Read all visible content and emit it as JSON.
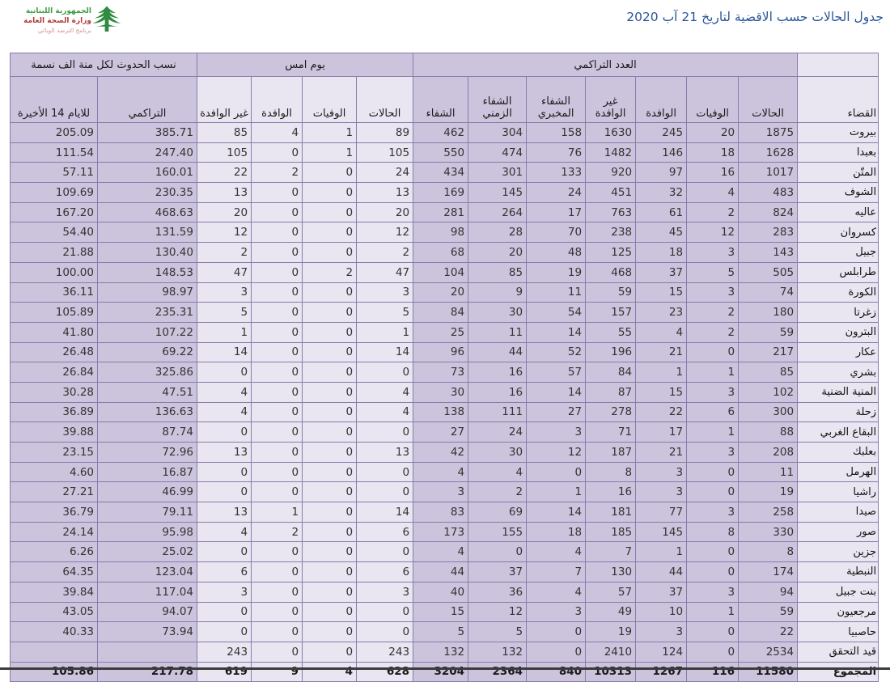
{
  "page": {
    "title": "جدول الحالات حسب الاقضية لتاريخ 21 آب 2020"
  },
  "logo": {
    "line1": "الجمهورية اللبنانية",
    "line2": "وزارة الصحة العامة",
    "line3": "برنامج الترصد الوبائي",
    "cedar_color": "#2e8b3f",
    "line1_color": "#3f9d45",
    "line2_color": "#b23a3a",
    "line3_color": "#d49090"
  },
  "table": {
    "corner_label": "القضاء",
    "groups": [
      {
        "label": "العدد التراكمي",
        "columns": [
          "الحالات",
          "الوفيات",
          "الوافدة",
          "غير الوافدة",
          "الشفاء المخبري",
          "الشفاء الزمني",
          "الشفاء"
        ]
      },
      {
        "label": "يوم امس",
        "columns": [
          "الحالات",
          "الوفيات",
          "الوافدة",
          "غير الوافدة"
        ]
      },
      {
        "label": "نسب الحدوث لكل منة الف نسمة",
        "columns": [
          "التراكمي",
          "للايام 14 الأخيرة"
        ]
      }
    ],
    "colors": {
      "lavender": "#ccc3dc",
      "light": "#e9e5f1",
      "border": "#8b7bab",
      "title_blue": "#2a5699"
    },
    "rows": [
      {
        "district": "بيروت",
        "values": [
          "1875",
          "20",
          "245",
          "1630",
          "158",
          "304",
          "462",
          "89",
          "1",
          "4",
          "85",
          "385.71",
          "205.09"
        ]
      },
      {
        "district": "بعبدا",
        "values": [
          "1628",
          "18",
          "146",
          "1482",
          "76",
          "474",
          "550",
          "105",
          "1",
          "0",
          "105",
          "247.40",
          "111.54"
        ]
      },
      {
        "district": "المتّن",
        "values": [
          "1017",
          "16",
          "97",
          "920",
          "133",
          "301",
          "434",
          "24",
          "0",
          "2",
          "22",
          "160.01",
          "57.11"
        ]
      },
      {
        "district": "الشوف",
        "values": [
          "483",
          "4",
          "32",
          "451",
          "24",
          "145",
          "169",
          "13",
          "0",
          "0",
          "13",
          "230.35",
          "109.69"
        ]
      },
      {
        "district": "عاليه",
        "values": [
          "824",
          "2",
          "61",
          "763",
          "17",
          "264",
          "281",
          "20",
          "0",
          "0",
          "20",
          "468.63",
          "167.20"
        ]
      },
      {
        "district": "كسروان",
        "values": [
          "283",
          "12",
          "45",
          "238",
          "70",
          "28",
          "98",
          "12",
          "0",
          "0",
          "12",
          "131.59",
          "54.40"
        ]
      },
      {
        "district": "جبيل",
        "values": [
          "143",
          "3",
          "18",
          "125",
          "48",
          "20",
          "68",
          "2",
          "0",
          "0",
          "2",
          "130.40",
          "21.88"
        ]
      },
      {
        "district": "طرابلس",
        "values": [
          "505",
          "5",
          "37",
          "468",
          "19",
          "85",
          "104",
          "47",
          "2",
          "0",
          "47",
          "148.53",
          "100.00"
        ]
      },
      {
        "district": "الكورة",
        "values": [
          "74",
          "3",
          "15",
          "59",
          "11",
          "9",
          "20",
          "3",
          "0",
          "0",
          "3",
          "98.97",
          "36.11"
        ]
      },
      {
        "district": "زغرتا",
        "values": [
          "180",
          "2",
          "23",
          "157",
          "54",
          "30",
          "84",
          "5",
          "0",
          "0",
          "5",
          "235.31",
          "105.89"
        ]
      },
      {
        "district": "البترون",
        "values": [
          "59",
          "2",
          "4",
          "55",
          "14",
          "11",
          "25",
          "1",
          "0",
          "0",
          "1",
          "107.22",
          "41.80"
        ]
      },
      {
        "district": "عكار",
        "values": [
          "217",
          "0",
          "21",
          "196",
          "52",
          "44",
          "96",
          "14",
          "0",
          "0",
          "14",
          "69.22",
          "26.48"
        ]
      },
      {
        "district": "بشري",
        "values": [
          "85",
          "1",
          "1",
          "84",
          "57",
          "16",
          "73",
          "0",
          "0",
          "0",
          "0",
          "325.86",
          "26.84"
        ]
      },
      {
        "district": "المنية الضنية",
        "values": [
          "102",
          "3",
          "15",
          "87",
          "14",
          "16",
          "30",
          "4",
          "0",
          "0",
          "4",
          "47.51",
          "30.28"
        ]
      },
      {
        "district": "زحلة",
        "values": [
          "300",
          "6",
          "22",
          "278",
          "27",
          "111",
          "138",
          "4",
          "0",
          "0",
          "4",
          "136.63",
          "36.89"
        ]
      },
      {
        "district": "البقاع الغربي",
        "values": [
          "88",
          "1",
          "17",
          "71",
          "3",
          "24",
          "27",
          "0",
          "0",
          "0",
          "0",
          "87.74",
          "39.88"
        ]
      },
      {
        "district": "بعلبك",
        "values": [
          "208",
          "3",
          "21",
          "187",
          "12",
          "30",
          "42",
          "13",
          "0",
          "0",
          "13",
          "72.96",
          "23.15"
        ]
      },
      {
        "district": "الهرمل",
        "values": [
          "11",
          "0",
          "3",
          "8",
          "0",
          "4",
          "4",
          "0",
          "0",
          "0",
          "0",
          "16.87",
          "4.60"
        ]
      },
      {
        "district": "راشيا",
        "values": [
          "19",
          "0",
          "3",
          "16",
          "1",
          "2",
          "3",
          "0",
          "0",
          "0",
          "0",
          "46.99",
          "27.21"
        ]
      },
      {
        "district": "صيدا",
        "values": [
          "258",
          "3",
          "77",
          "181",
          "14",
          "69",
          "83",
          "14",
          "0",
          "1",
          "13",
          "79.11",
          "36.79"
        ]
      },
      {
        "district": "صور",
        "values": [
          "330",
          "8",
          "145",
          "185",
          "18",
          "155",
          "173",
          "6",
          "0",
          "2",
          "4",
          "95.98",
          "24.14"
        ]
      },
      {
        "district": "جزين",
        "values": [
          "8",
          "0",
          "1",
          "7",
          "4",
          "0",
          "4",
          "0",
          "0",
          "0",
          "0",
          "25.02",
          "6.26"
        ]
      },
      {
        "district": "النبطية",
        "values": [
          "174",
          "0",
          "44",
          "130",
          "7",
          "37",
          "44",
          "6",
          "0",
          "0",
          "6",
          "123.04",
          "64.35"
        ]
      },
      {
        "district": "بنت جبيل",
        "values": [
          "94",
          "3",
          "37",
          "57",
          "4",
          "36",
          "40",
          "3",
          "0",
          "0",
          "3",
          "117.04",
          "39.84"
        ]
      },
      {
        "district": "مرجعيون",
        "values": [
          "59",
          "1",
          "10",
          "49",
          "3",
          "12",
          "15",
          "0",
          "0",
          "0",
          "0",
          "94.07",
          "43.05"
        ]
      },
      {
        "district": "حاصبيا",
        "values": [
          "22",
          "0",
          "3",
          "19",
          "0",
          "5",
          "5",
          "0",
          "0",
          "0",
          "0",
          "73.94",
          "40.33"
        ]
      },
      {
        "district": "قيد التحقق",
        "values": [
          "2534",
          "0",
          "124",
          "2410",
          "0",
          "132",
          "132",
          "243",
          "0",
          "0",
          "243",
          "",
          ""
        ]
      },
      {
        "district": "المجموع",
        "is_total": true,
        "values": [
          "11580",
          "116",
          "1267",
          "10313",
          "840",
          "2364",
          "3204",
          "628",
          "4",
          "9",
          "619",
          "217.78",
          "105.86"
        ]
      }
    ]
  }
}
